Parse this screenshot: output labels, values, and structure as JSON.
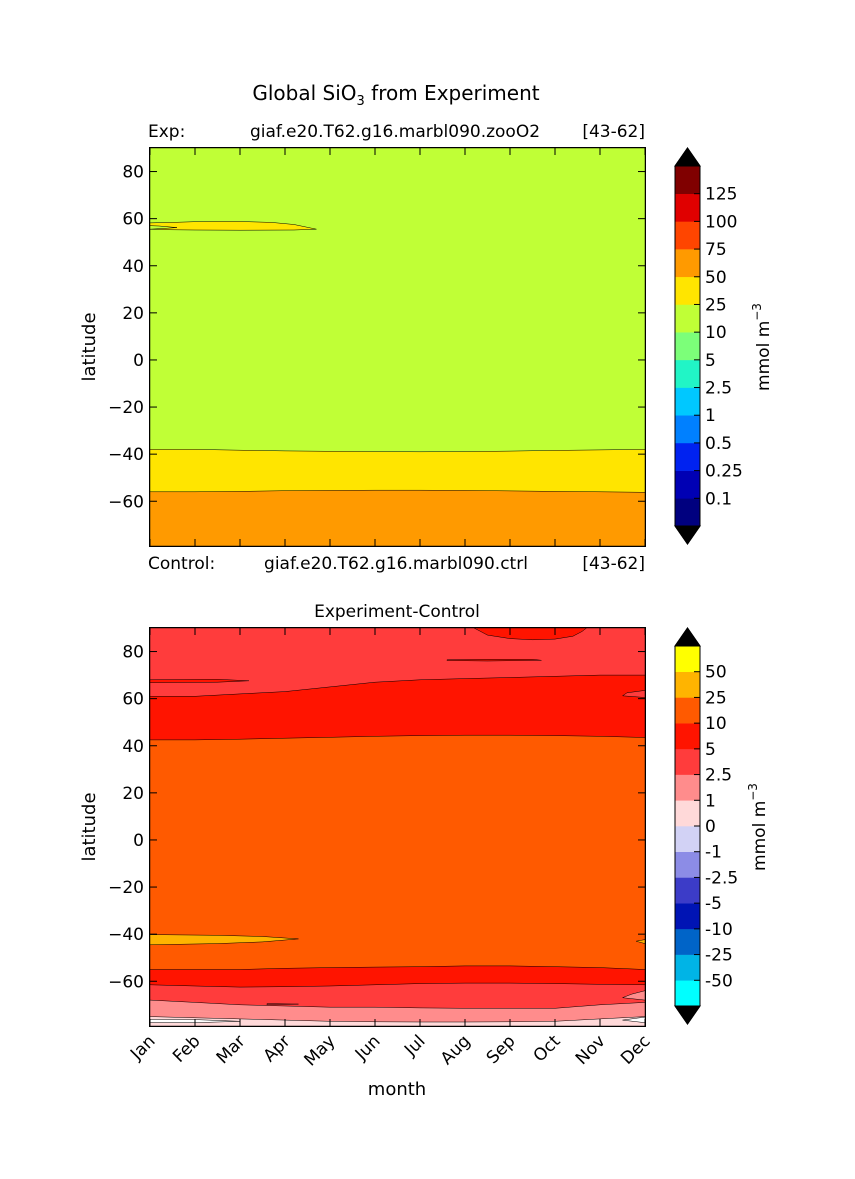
{
  "figure": {
    "title_prefix": "Global SiO",
    "title_subscript": "3",
    "title_suffix": " from Experiment"
  },
  "chart_data": [
    {
      "type": "heatmap",
      "panel": "experiment",
      "exp_label": "Exp:",
      "exp_case": "giaf.e20.T62.g16.marbl090.zooO2",
      "exp_years": "[43-62]",
      "ctrl_label": "Control:",
      "ctrl_case": "giaf.e20.T62.g16.marbl090.ctrl",
      "ctrl_years": "[43-62]",
      "xlabel": "",
      "ylabel": "latitude",
      "xlim": [
        0,
        11
      ],
      "ylim": [
        -79,
        90
      ],
      "yticks": [
        -60,
        -40,
        -20,
        0,
        20,
        40,
        60,
        80
      ],
      "ytick_labels": [
        "−60",
        "−40",
        "−20",
        "0",
        "20",
        "40",
        "60",
        "80"
      ],
      "colorbar": {
        "label": "mmol m",
        "label_exponent": "−3",
        "levels": [
          "0.1",
          "0.25",
          "0.5",
          "1",
          "2.5",
          "5",
          "10",
          "25",
          "50",
          "75",
          "100",
          "125"
        ],
        "colors": [
          "#00007f",
          "#0000b4",
          "#0022f0",
          "#0080ff",
          "#00c8ff",
          "#21f5c6",
          "#7cff79",
          "#c0ff36",
          "#ffe500",
          "#ff9a00",
          "#ff4500",
          "#e00000",
          "#800000"
        ],
        "extend_colors": [
          "#000000",
          "#000000"
        ]
      },
      "bands": [
        {
          "color": "#c0ff36",
          "top": [
            90,
            90,
            90,
            90,
            90,
            90,
            90,
            90,
            90,
            90,
            90,
            90
          ],
          "bottom": [
            -79,
            -79,
            -79,
            -79,
            -79,
            -79,
            -79,
            -79,
            -79,
            -79,
            -79,
            -79
          ]
        },
        {
          "color": "#ffe500",
          "top": [
            -38,
            -38,
            -38.3,
            -38.6,
            -38.8,
            -38.9,
            -39,
            -38.9,
            -38.7,
            -38.4,
            -38.2,
            -38
          ],
          "bottom": [
            -79,
            -79,
            -79,
            -79,
            -79,
            -79,
            -79,
            -79,
            -79,
            -79,
            -79,
            -79
          ]
        },
        {
          "color": "#ff9a00",
          "top": [
            -56,
            -56,
            -55.8,
            -55.5,
            -55.4,
            -55.3,
            -55.3,
            -55.4,
            -55.6,
            -55.8,
            -56,
            -56.2
          ],
          "bottom": [
            -79,
            -79,
            -79,
            -79,
            -79,
            -79,
            -79,
            -79,
            -79,
            -79,
            -79,
            -79
          ]
        }
      ],
      "patches": [
        {
          "color": "#ffe500",
          "points": [
            [
              0,
              58.2
            ],
            [
              0.5,
              58.4
            ],
            [
              1,
              58.7
            ],
            [
              1.5,
              58.8
            ],
            [
              2,
              58.8
            ],
            [
              2.7,
              58.4
            ],
            [
              3.2,
              57.5
            ],
            [
              3.7,
              55.5
            ],
            [
              3.2,
              55.2
            ],
            [
              2,
              55.1
            ],
            [
              1,
              55.2
            ],
            [
              0.3,
              55.3
            ],
            [
              0,
              55.5
            ],
            [
              0.6,
              56.2
            ],
            [
              0.2,
              56.9
            ],
            [
              0,
              57
            ]
          ]
        }
      ]
    },
    {
      "type": "heatmap",
      "panel": "difference",
      "title": "Experiment-Control",
      "xlabel": "month",
      "ylabel": "latitude",
      "xlim": [
        0,
        11
      ],
      "ylim": [
        -79,
        90
      ],
      "categories": [
        "Jan",
        "Feb",
        "Mar",
        "Apr",
        "May",
        "Jun",
        "Jul",
        "Aug",
        "Sep",
        "Oct",
        "Nov",
        "Dec"
      ],
      "yticks": [
        -60,
        -40,
        -20,
        0,
        20,
        40,
        60,
        80
      ],
      "ytick_labels": [
        "−60",
        "−40",
        "−20",
        "0",
        "20",
        "40",
        "60",
        "80"
      ],
      "colorbar": {
        "label": "mmol m",
        "label_exponent": "−3",
        "levels": [
          "-50",
          "-25",
          "-10",
          "-5",
          "-2.5",
          "-1",
          "0",
          "1",
          "2.5",
          "5",
          "10",
          "25",
          "50"
        ],
        "colors": [
          "#00ffff",
          "#00b4e6",
          "#0064c8",
          "#0014b4",
          "#3c3cc8",
          "#8c8ce6",
          "#d2d2f5",
          "#ffd9d9",
          "#ff8c8c",
          "#ff3c3c",
          "#ff1400",
          "#ff5a00",
          "#ffb400",
          "#ffff00"
        ],
        "extend_colors": [
          "#000000",
          "#000000"
        ]
      },
      "bands": [
        {
          "color": "#ff3c3c",
          "top": [
            90,
            90,
            90,
            90,
            90,
            90,
            90,
            90,
            90,
            90,
            90,
            90
          ],
          "bottom": [
            -79,
            -79,
            -79,
            -79,
            -79,
            -79,
            -79,
            -79,
            -79,
            -79,
            -79,
            -79
          ]
        },
        {
          "color": "#ff1400",
          "top": [
            61,
            61,
            62,
            63,
            65,
            67,
            68,
            68.5,
            69,
            69.5,
            70,
            70
          ],
          "bottom": [
            -79,
            -79,
            -79,
            -79,
            -79,
            -79,
            -79,
            -79,
            -79,
            -79,
            -79,
            -79
          ]
        },
        {
          "color": "#ff5a00",
          "top": [
            42.5,
            42.5,
            42.8,
            43.2,
            43.6,
            44,
            44.3,
            44.5,
            44.5,
            44.3,
            44,
            43.5
          ],
          "bottom": [
            -79,
            -79,
            -79,
            -79,
            -79,
            -79,
            -79,
            -79,
            -79,
            -79,
            -79,
            -79
          ]
        },
        {
          "color": "#ff1400",
          "top": [
            -55,
            -55,
            -55,
            -54.5,
            -54.2,
            -54,
            -53.8,
            -53.5,
            -53.5,
            -53.8,
            -54.2,
            -55
          ],
          "bottom": [
            -79,
            -79,
            -79,
            -79,
            -79,
            -79,
            -79,
            -79,
            -79,
            -79,
            -79,
            -79
          ]
        },
        {
          "color": "#ff3c3c",
          "top": [
            -61.5,
            -62,
            -62.5,
            -62.3,
            -62,
            -61.5,
            -61,
            -60.8,
            -60.8,
            -61,
            -61.3,
            -61.5
          ],
          "bottom": [
            -79,
            -79,
            -79,
            -79,
            -79,
            -79,
            -79,
            -79,
            -79,
            -79,
            -79,
            -79
          ]
        },
        {
          "color": "#ff8c8c",
          "top": [
            -68,
            -69,
            -70,
            -70.5,
            -71,
            -71,
            -71.3,
            -71.5,
            -71.5,
            -71.5,
            -70,
            -69
          ],
          "bottom": [
            -79,
            -79,
            -79,
            -79,
            -79,
            -79,
            -79,
            -79,
            -79,
            -79,
            -79,
            -79
          ]
        },
        {
          "color": "#ffd9d9",
          "top": [
            -75,
            -75.5,
            -76,
            -76.5,
            -77,
            -77.2,
            -77.3,
            -77.3,
            -77.2,
            -77,
            -76,
            -75
          ],
          "bottom": [
            -79,
            -79,
            -79,
            -79,
            -79,
            -79,
            -79,
            -79,
            -79,
            -79,
            -79,
            -79
          ]
        }
      ],
      "patches": [
        {
          "color": "#ff1400",
          "points": [
            [
              7.2,
              90
            ],
            [
              7.5,
              87
            ],
            [
              8,
              85.5
            ],
            [
              8.5,
              85
            ],
            [
              9,
              85.3
            ],
            [
              9.4,
              86.5
            ],
            [
              9.6,
              88.5
            ],
            [
              9.7,
              90
            ]
          ]
        },
        {
          "color": "#ff1400",
          "points": [
            [
              0,
              68
            ],
            [
              1.5,
              68.2
            ],
            [
              2.2,
              67.6
            ],
            [
              1.5,
              67
            ],
            [
              0,
              66.8
            ]
          ]
        },
        {
          "color": "#ff1400",
          "points": [
            [
              6.6,
              76.5
            ],
            [
              7.5,
              76.7
            ],
            [
              8.5,
              76.7
            ],
            [
              8.7,
              76.3
            ],
            [
              7.5,
              76
            ],
            [
              6.6,
              76.2
            ]
          ]
        },
        {
          "color": "#ff3c3c",
          "points": [
            [
              11,
              63.5
            ],
            [
              10.6,
              62.5
            ],
            [
              10.5,
              61.2
            ],
            [
              11,
              60.5
            ]
          ]
        },
        {
          "color": "#ffb400",
          "points": [
            [
              0,
              -40.2
            ],
            [
              1.5,
              -40.5
            ],
            [
              2.5,
              -41
            ],
            [
              3.3,
              -42
            ],
            [
              2.5,
              -43.3
            ],
            [
              1.5,
              -44
            ],
            [
              0,
              -44.5
            ]
          ]
        },
        {
          "color": "#ffb400",
          "points": [
            [
              11,
              -42.3
            ],
            [
              10.8,
              -43
            ],
            [
              11,
              -44
            ]
          ]
        },
        {
          "color": "#ff8c8c",
          "points": [
            [
              11,
              -64
            ],
            [
              10.7,
              -65.5
            ],
            [
              10.5,
              -67
            ],
            [
              11,
              -68
            ]
          ]
        },
        {
          "color": "#ffffff",
          "points": [
            [
              0,
              -76.2
            ],
            [
              1,
              -76.3
            ],
            [
              2,
              -77
            ],
            [
              1,
              -77.6
            ],
            [
              0,
              -77.5
            ]
          ]
        },
        {
          "color": "#ffffff",
          "points": [
            [
              11,
              -75.2
            ],
            [
              10.5,
              -76.5
            ],
            [
              11,
              -77.6
            ]
          ]
        },
        {
          "color": "#ff3c3c",
          "points": [
            [
              2.6,
              -69.5
            ],
            [
              3.3,
              -69.7
            ],
            [
              2.6,
              -70
            ]
          ]
        }
      ]
    }
  ]
}
